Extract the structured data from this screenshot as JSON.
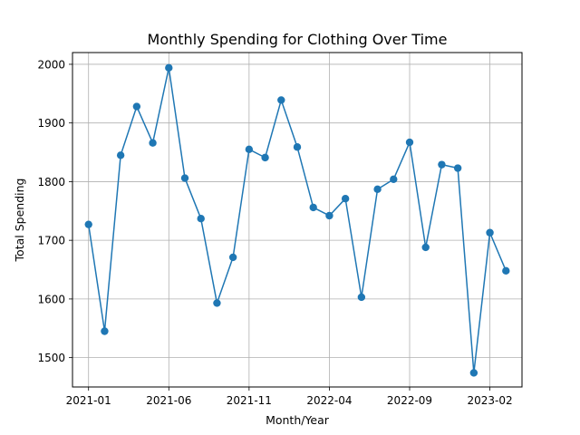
{
  "chart_data": {
    "type": "line",
    "title": "Monthly Spending for Clothing Over Time",
    "xlabel": "Month/Year",
    "ylabel": "Total Spending",
    "x_tick_labels": [
      "2021-01",
      "2021-06",
      "2021-11",
      "2022-04",
      "2022-09",
      "2023-02"
    ],
    "y_ticks": [
      1500,
      1600,
      1700,
      1800,
      1900,
      2000
    ],
    "ylim": [
      1450,
      2020
    ],
    "xlim": [
      "2020-12",
      "2023-04"
    ],
    "grid": true,
    "marker": "circle",
    "series": [
      {
        "color": "#1f77b4",
        "points": [
          {
            "x": "2021-01",
            "y": 1727
          },
          {
            "x": "2021-02",
            "y": 1545
          },
          {
            "x": "2021-03",
            "y": 1845
          },
          {
            "x": "2021-04",
            "y": 1928
          },
          {
            "x": "2021-05",
            "y": 1866
          },
          {
            "x": "2021-06",
            "y": 1994
          },
          {
            "x": "2021-07",
            "y": 1806
          },
          {
            "x": "2021-08",
            "y": 1737
          },
          {
            "x": "2021-09",
            "y": 1593
          },
          {
            "x": "2021-10",
            "y": 1671
          },
          {
            "x": "2021-11",
            "y": 1855
          },
          {
            "x": "2021-12",
            "y": 1841
          },
          {
            "x": "2022-01",
            "y": 1939
          },
          {
            "x": "2022-02",
            "y": 1859
          },
          {
            "x": "2022-03",
            "y": 1756
          },
          {
            "x": "2022-04",
            "y": 1742
          },
          {
            "x": "2022-05",
            "y": 1771
          },
          {
            "x": "2022-06",
            "y": 1603
          },
          {
            "x": "2022-07",
            "y": 1787
          },
          {
            "x": "2022-08",
            "y": 1804
          },
          {
            "x": "2022-09",
            "y": 1867
          },
          {
            "x": "2022-10",
            "y": 1688
          },
          {
            "x": "2022-11",
            "y": 1829
          },
          {
            "x": "2022-12",
            "y": 1823
          },
          {
            "x": "2023-01",
            "y": 1474
          },
          {
            "x": "2023-02",
            "y": 1713
          },
          {
            "x": "2023-03",
            "y": 1648
          }
        ]
      }
    ]
  }
}
